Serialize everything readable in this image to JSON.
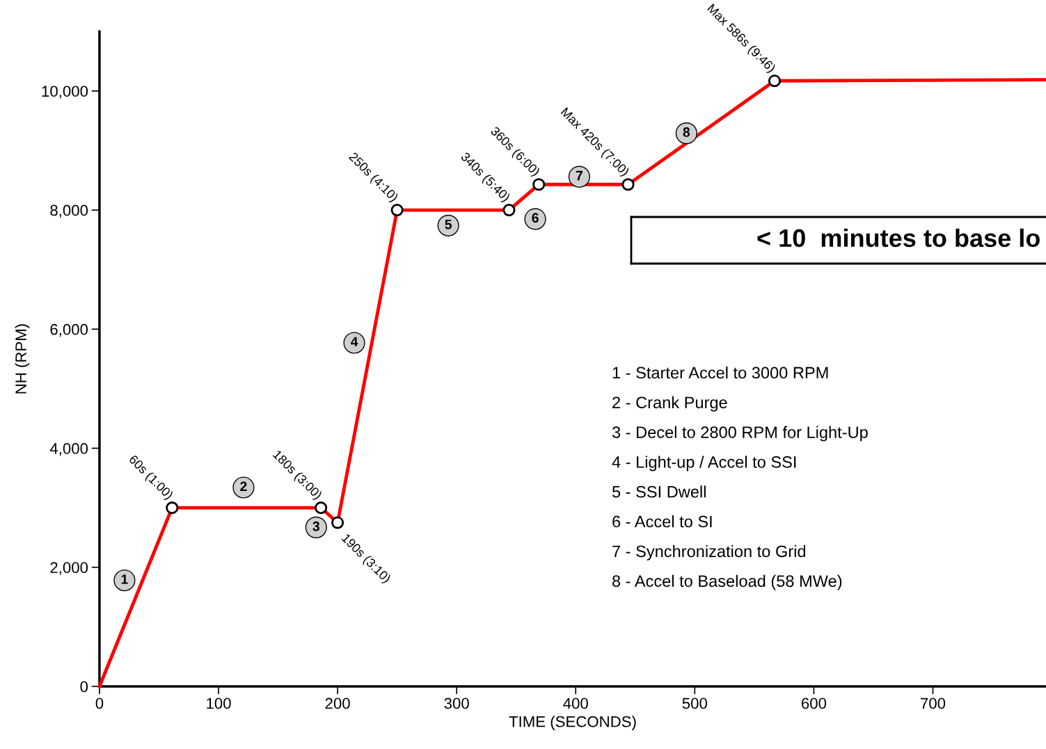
{
  "chart_data": {
    "type": "line",
    "xlabel": "TIME (SECONDS)",
    "ylabel": "NH (RPM)",
    "x": [
      0,
      61,
      186,
      200,
      250,
      344,
      369,
      444,
      567,
      795
    ],
    "series": [
      {
        "color": "#ff0000",
        "values": [
          0,
          3000,
          3000,
          2750,
          8000,
          8000,
          8430,
          8430,
          10170,
          10190
        ]
      }
    ],
    "xlim": [
      0,
      795
    ],
    "ylim": [
      0,
      11000
    ],
    "xticks": [
      0,
      100,
      200,
      300,
      400,
      500,
      600,
      700
    ],
    "yticks": [
      0,
      {
        "value": 2000,
        "label": "2,000"
      },
      {
        "value": 4000,
        "label": "4,000"
      },
      {
        "value": 6000,
        "label": "6,000"
      },
      {
        "value": 8000,
        "label": "8,000"
      },
      {
        "value": 10000,
        "label": "10,000"
      }
    ],
    "grid": false,
    "legend": false,
    "marker": "circle",
    "line_style": "solid",
    "annotations": [
      {
        "text": "60s (1:00)",
        "x": 61,
        "y": 3000
      },
      {
        "text": "180s (3:00)",
        "x": 186,
        "y": 3000
      },
      {
        "text": "190s (3:10)",
        "x": 200,
        "y": 2750
      },
      {
        "text": "250s (4:10)",
        "x": 250,
        "y": 8000
      },
      {
        "text": "340s (5:40)",
        "x": 344,
        "y": 8000
      },
      {
        "text": "360s (6:00)",
        "x": 369,
        "y": 8430
      },
      {
        "text": "Max 420s (7:00)",
        "x": 444,
        "y": 8430
      },
      {
        "text": "Max 586s (9:46)",
        "x": 567,
        "y": 10170
      },
      {
        "text": "1",
        "x": 21,
        "y": 1780
      },
      {
        "text": "2",
        "x": 121,
        "y": 3340
      },
      {
        "text": "3",
        "x": 182,
        "y": 2670
      },
      {
        "text": "4",
        "x": 214,
        "y": 5770
      },
      {
        "text": "5",
        "x": 293,
        "y": 7740
      },
      {
        "text": "6",
        "x": 366,
        "y": 7850
      },
      {
        "text": "7",
        "x": 403,
        "y": 8560
      },
      {
        "text": "8",
        "x": 493,
        "y": 9290
      },
      "1 - Starter Accel to 3000 RPM",
      "2 - Crank Purge",
      "3 - Decel to 2800 RPM for Light-Up",
      "4 - Light-up / Accel to SSI",
      "5 - SSI Dwell",
      "6 - Accel to SI",
      "7 - Synchronization to Grid",
      "8 - Accel to Baseload (58 MWe)",
      "< 10  minutes to base lo"
    ]
  }
}
